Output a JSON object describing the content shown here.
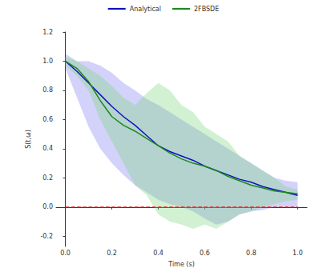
{
  "chart_data": {
    "type": "line",
    "x_label": "Time (s)",
    "y_label": "S(t,ω)",
    "x": [
      0,
      0.05,
      0.1,
      0.15,
      0.2,
      0.25,
      0.3,
      0.35,
      0.4,
      0.45,
      0.5,
      0.55,
      0.6,
      0.65,
      0.7,
      0.75,
      0.8,
      0.85,
      0.9,
      0.95,
      1.0
    ],
    "series": [
      {
        "name": "Analytical",
        "color": "#1010c0",
        "band_color": "#7d7df0",
        "values": [
          1.0,
          0.93,
          0.85,
          0.77,
          0.69,
          0.62,
          0.56,
          0.49,
          0.42,
          0.38,
          0.35,
          0.32,
          0.28,
          0.25,
          0.22,
          0.19,
          0.17,
          0.14,
          0.12,
          0.1,
          0.08
        ],
        "lower": [
          0.95,
          0.75,
          0.55,
          0.4,
          0.3,
          0.22,
          0.15,
          0.1,
          0.05,
          0.02,
          0.0,
          -0.03,
          -0.08,
          -0.12,
          -0.1,
          -0.05,
          -0.03,
          -0.02,
          0.0,
          0.0,
          0.0
        ],
        "upper": [
          1.05,
          1.0,
          1.0,
          0.97,
          0.92,
          0.85,
          0.8,
          0.74,
          0.7,
          0.65,
          0.6,
          0.55,
          0.5,
          0.45,
          0.4,
          0.35,
          0.3,
          0.25,
          0.2,
          0.18,
          0.17
        ]
      },
      {
        "name": "2FBSDE",
        "color": "#1a8a1a",
        "band_color": "#7fd67f",
        "values": [
          1.0,
          0.95,
          0.86,
          0.73,
          0.62,
          0.56,
          0.52,
          0.47,
          0.42,
          0.37,
          0.33,
          0.3,
          0.28,
          0.25,
          0.21,
          0.18,
          0.15,
          0.13,
          0.11,
          0.1,
          0.09
        ],
        "lower": [
          0.97,
          0.9,
          0.8,
          0.6,
          0.45,
          0.3,
          0.15,
          0.08,
          -0.05,
          -0.1,
          -0.12,
          -0.15,
          -0.12,
          -0.15,
          -0.1,
          -0.05,
          -0.03,
          0.0,
          0.02,
          0.04,
          0.05
        ],
        "upper": [
          1.03,
          1.0,
          0.95,
          0.9,
          0.83,
          0.75,
          0.7,
          0.78,
          0.85,
          0.8,
          0.7,
          0.65,
          0.55,
          0.5,
          0.45,
          0.35,
          0.3,
          0.25,
          0.2,
          0.14,
          0.12
        ]
      }
    ],
    "hline": {
      "value": 0,
      "x": [
        0,
        1.0
      ],
      "color": "#e02020",
      "line_style": "dashed"
    },
    "xlim": [
      -0.04,
      1.04
    ],
    "xticks": [
      {
        "value": 0,
        "label": "0.0"
      },
      {
        "value": 0.2,
        "label": "0.2"
      },
      {
        "value": 0.4,
        "label": "0.4"
      },
      {
        "value": 0.6,
        "label": "0.6"
      },
      {
        "value": 0.8,
        "label": "0.8"
      },
      {
        "value": 1.0,
        "label": "1.0"
      }
    ],
    "ylim": [
      -0.27,
      1.2
    ],
    "yticks": [
      {
        "value": -0.2,
        "label": "-0.2"
      },
      {
        "value": 0,
        "label": "0.0"
      },
      {
        "value": 0.2,
        "label": "0.2"
      },
      {
        "value": 0.4,
        "label": "0.4"
      },
      {
        "value": 0.6,
        "label": "0.6"
      },
      {
        "value": 0.8,
        "label": "0.8"
      },
      {
        "value": 1.0,
        "label": "1.0"
      },
      {
        "value": 1.2,
        "label": "1.2"
      }
    ],
    "legend": "top",
    "grid": false
  }
}
